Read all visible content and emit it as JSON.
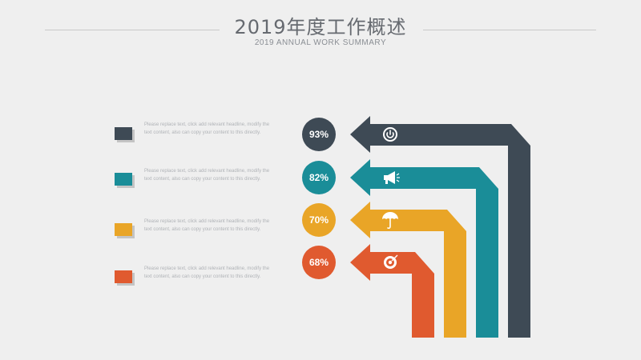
{
  "header": {
    "title": "2019年度工作概述",
    "subtitle": "2019 ANNUAL WORK SUMMARY"
  },
  "rows": [
    {
      "percent": "93%",
      "color": "#3e4a55",
      "icon": "power-icon",
      "line1": "Please replace text, click add relevant headline, modify the",
      "line2": "text content, also can copy your content to this directly."
    },
    {
      "percent": "82%",
      "color": "#1a8d98",
      "icon": "megaphone-icon",
      "line1": "Please replace text, click add relevant headline, modify the",
      "line2": "text content, also can copy your content to this directly."
    },
    {
      "percent": "70%",
      "color": "#e9a527",
      "icon": "umbrella-icon",
      "line1": "Please replace text, click add relevant headline, modify the",
      "line2": "text content, also can copy your content to this directly."
    },
    {
      "percent": "68%",
      "color": "#e05a2f",
      "icon": "target-icon",
      "line1": "Please replace text, click add relevant headline, modify the",
      "line2": "text content, also can copy your content to this directly."
    }
  ]
}
